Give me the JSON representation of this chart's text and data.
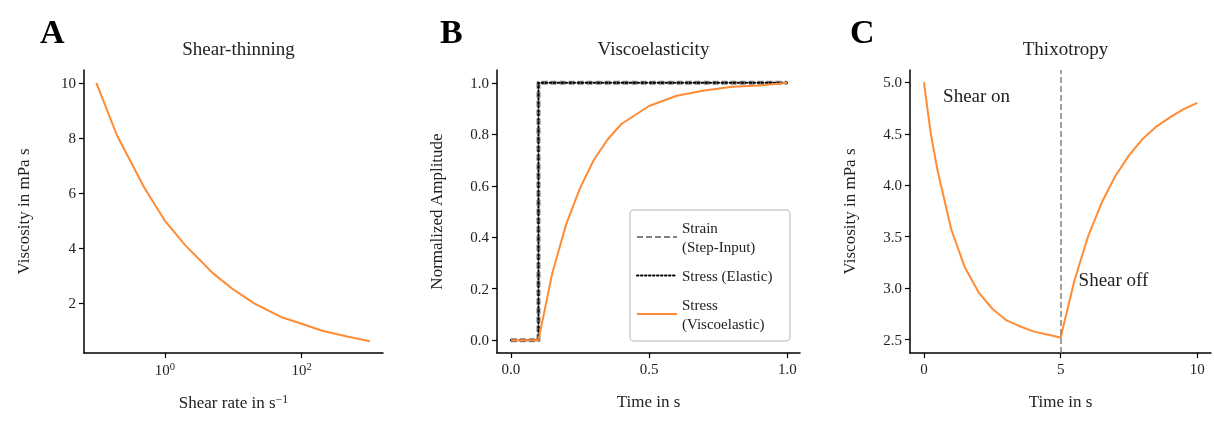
{
  "chart_data": [
    {
      "type": "line",
      "title": "Shear-thinning",
      "xlabel": "Shear rate in s$^{−1}$",
      "ylabel": "Viscosity in mPa s",
      "annotations": [
        "A"
      ],
      "log": "x",
      "x": [
        0.1,
        0.2,
        0.5,
        1,
        2,
        5,
        10,
        20,
        50,
        100,
        200,
        500,
        1000
      ],
      "series": [
        {
          "color": "#ff8c35",
          "values": [
            10,
            8.1,
            6.2,
            5,
            4.1,
            3.1,
            2.5,
            2.0,
            1.5,
            1.25,
            1.0,
            0.77,
            0.62
          ]
        }
      ],
      "xlim": [
        0.066,
        1550
      ],
      "xticks": [
        {
          "value": 1,
          "label": "10$^{0}$"
        },
        {
          "value": 100,
          "label": "10$^{2}$"
        }
      ],
      "ylim": [
        0.19,
        10.47
      ],
      "yticks": [
        2,
        4,
        6,
        8,
        10
      ],
      "grid": false,
      "legend": false,
      "marker": "none"
    },
    {
      "type": "line",
      "title": "Viscoelasticity",
      "xlabel": "Time in s",
      "ylabel": "Normalized Amplitude",
      "annotations": [
        "B"
      ],
      "series": [
        {
          "name": "Strain (Step-Input)",
          "color": "#808080",
          "line_style": "dashed",
          "x": [
            0,
            0.1,
            0.1,
            1.0
          ],
          "values": [
            0,
            0,
            1,
            1
          ]
        },
        {
          "name": "Stress (Elastic)",
          "color": "#000000",
          "line_style": "dotted",
          "x": [
            0,
            0.1,
            0.1,
            1.0
          ],
          "values": [
            0,
            0,
            1,
            1
          ]
        },
        {
          "name": "Stress (Viscoelastic)",
          "color": "#ff8c35",
          "line_style": "solid",
          "x": [
            0,
            0.1,
            0.15,
            0.2,
            0.25,
            0.3,
            0.35,
            0.4,
            0.5,
            0.6,
            0.7,
            0.8,
            0.9,
            1.0
          ],
          "values": [
            0,
            0,
            0.26,
            0.45,
            0.59,
            0.7,
            0.78,
            0.84,
            0.91,
            0.95,
            0.97,
            0.985,
            0.99,
            1.0
          ]
        }
      ],
      "xlim": [
        -0.05,
        1.046
      ],
      "xticks": [
        {
          "value": 0,
          "label": "0.0"
        },
        {
          "value": 0.5,
          "label": "0.5"
        },
        {
          "value": 1,
          "label": "1.0"
        }
      ],
      "ylim": [
        -0.05,
        1.05
      ],
      "yticks": [
        {
          "value": 0,
          "label": "0.0"
        },
        {
          "value": 0.2,
          "label": "0.2"
        },
        {
          "value": 0.4,
          "label": "0.4"
        },
        {
          "value": 0.6,
          "label": "0.6"
        },
        {
          "value": 0.8,
          "label": "0.8"
        },
        {
          "value": 1,
          "label": "1.0"
        }
      ],
      "grid": false,
      "legend": "bottom right",
      "marker": "none"
    },
    {
      "type": "line",
      "title": "Thixotropy",
      "xlabel": "Time in s",
      "ylabel": "Viscosity in mPa s",
      "annotations": [
        "C",
        "Shear on",
        "Shear off"
      ],
      "x": [
        0,
        0.25,
        0.5,
        1,
        1.5,
        2,
        2.5,
        3,
        3.5,
        4,
        4.5,
        5,
        5.5,
        6,
        6.5,
        7,
        7.5,
        8,
        8.5,
        9,
        9.5,
        10
      ],
      "series": [
        {
          "color": "#ff8c35",
          "values": [
            5.0,
            4.5,
            4.14,
            3.57,
            3.2,
            2.96,
            2.8,
            2.69,
            2.63,
            2.58,
            2.55,
            2.52,
            3.07,
            3.5,
            3.83,
            4.09,
            4.29,
            4.45,
            4.57,
            4.66,
            4.74,
            4.8
          ]
        }
      ],
      "ref_lines": [
        {
          "axis": "x",
          "value": 5,
          "label": null,
          "color": "#808080",
          "line_style": "dashed"
        }
      ],
      "xlim": [
        -0.51,
        10.5
      ],
      "xticks": [
        0,
        5,
        10
      ],
      "ylim": [
        2.37,
        5.12
      ],
      "yticks": [
        {
          "value": 2.5,
          "label": "2.5"
        },
        {
          "value": 3,
          "label": "3.0"
        },
        {
          "value": 3.5,
          "label": "3.5"
        },
        {
          "value": 4,
          "label": "4.0"
        },
        {
          "value": 4.5,
          "label": "4.5"
        },
        {
          "value": 5,
          "label": "5.0"
        }
      ],
      "grid": false,
      "legend": false,
      "marker": "none"
    }
  ]
}
